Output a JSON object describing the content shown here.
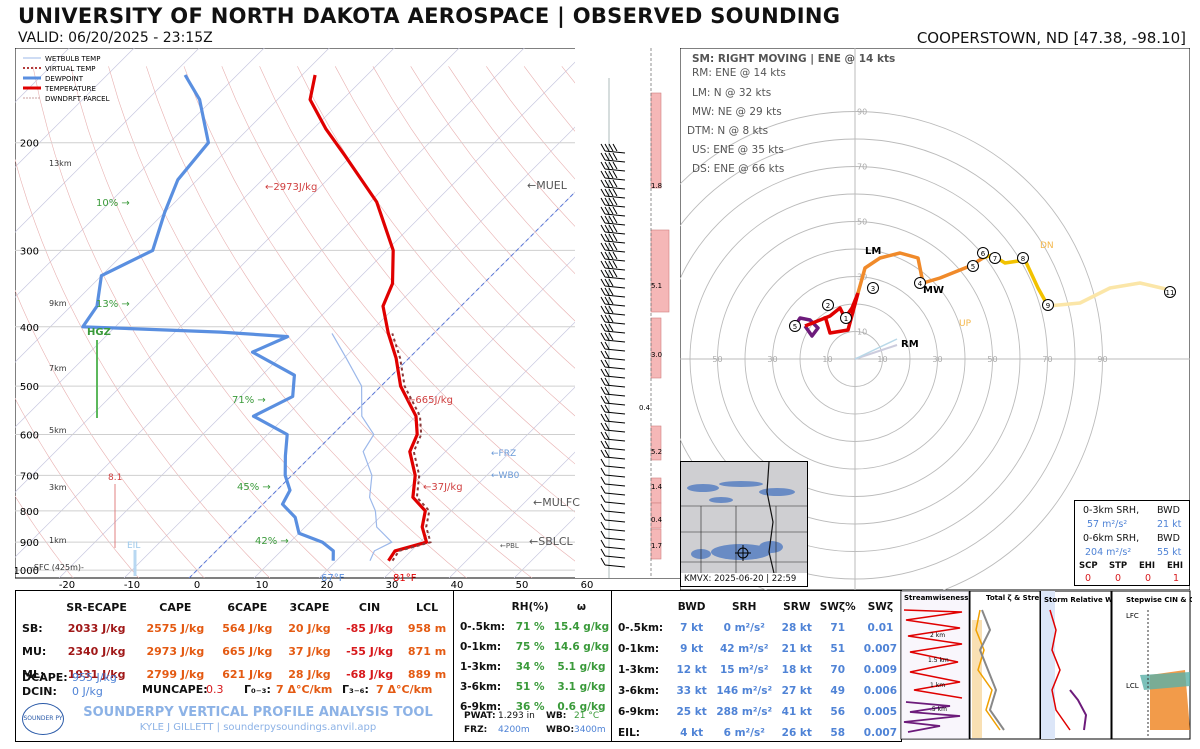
{
  "header": {
    "title": "UNIVERSITY OF NORTH DAKOTA AEROSPACE | OBSERVED SOUNDING",
    "valid": "VALID: 06/20/2025 - 23:15Z",
    "station": "COOPERSTOWN, ND [47.38, -98.10]"
  },
  "legend": [
    "WETBULB TEMP",
    "VIRTUAL TEMP",
    "DEWPOINT",
    "TEMPERATURE",
    "DWNDRFT PARCEL"
  ],
  "skewt": {
    "pressure_labels": [
      "200",
      "300",
      "400",
      "500",
      "600",
      "700",
      "800",
      "900",
      "1000"
    ],
    "pressure_values": [
      200,
      300,
      400,
      500,
      600,
      700,
      800,
      900,
      1000
    ],
    "height_labels": [
      "13km",
      "9km",
      "7km",
      "5km",
      "3km",
      "1km",
      "-SFC (425m)-"
    ],
    "temp_labels": [
      "-20",
      "-10",
      "0",
      "10",
      "20",
      "30",
      "40",
      "50",
      "60"
    ],
    "temp_values": [
      -20,
      -10,
      0,
      10,
      20,
      30,
      40,
      50,
      60
    ],
    "sfc_dewpoint": "67°F",
    "sfc_temp": "81°F",
    "annotations": {
      "cape1": "←2973J/kg",
      "cape2": "←665J/kg",
      "cape3": "←37J/kg",
      "muel": "←MUEL",
      "mulfc": "←MULFC",
      "sblcl": "←SBLCL",
      "pbl": "←PBL",
      "frz": "←FRZ",
      "wb0": "←WB0",
      "rh10": "10% →",
      "rh13": "13% →",
      "rh71": "71% →",
      "rh45": "45% →",
      "rh42": "42% →",
      "hgz": "HGZ",
      "dcape_val": "8.1",
      "eil": "EIL"
    },
    "bar_labels": [
      "1.8",
      "5.1",
      "3.0",
      "0.4",
      "5.2",
      "1.4",
      "0.4",
      "1.7"
    ]
  },
  "chart_data": {
    "type": "line",
    "title": "",
    "xlabel": "",
    "ylabel": "",
    "xlim": [
      -25,
      62
    ],
    "ylim": [
      1000,
      100
    ],
    "series": [
      {
        "name": "TEMPERATURE",
        "points": [
          [
            28,
            965
          ],
          [
            27.5,
            930
          ],
          [
            31,
            900
          ],
          [
            28,
            850
          ],
          [
            26,
            800
          ],
          [
            22,
            760
          ],
          [
            19,
            700
          ],
          [
            14.5,
            640
          ],
          [
            13,
            600
          ],
          [
            10,
            560
          ],
          [
            3,
            500
          ],
          [
            -2,
            450
          ],
          [
            -7,
            410
          ],
          [
            -12,
            370
          ],
          [
            -14,
            340
          ],
          [
            -19,
            300
          ],
          [
            -29,
            250
          ],
          [
            -41,
            210
          ],
          [
            -48,
            190
          ],
          [
            -55,
            170
          ],
          [
            -58,
            155
          ]
        ]
      },
      {
        "name": "DEWPOINT",
        "points": [
          [
            19.5,
            965
          ],
          [
            18,
            930
          ],
          [
            15,
            900
          ],
          [
            10,
            870
          ],
          [
            7,
            820
          ],
          [
            3,
            780
          ],
          [
            2,
            740
          ],
          [
            -1,
            700
          ],
          [
            -4,
            650
          ],
          [
            -7,
            600
          ],
          [
            -15,
            560
          ],
          [
            -12,
            520
          ],
          [
            -15,
            480
          ],
          [
            -25,
            440
          ],
          [
            -22,
            415
          ],
          [
            -33,
            408
          ],
          [
            -55,
            400
          ],
          [
            -56,
            370
          ],
          [
            -60,
            330
          ],
          [
            -56,
            300
          ],
          [
            -60,
            260
          ],
          [
            -63,
            230
          ],
          [
            -64,
            200
          ],
          [
            -72,
            170
          ],
          [
            -78,
            155
          ]
        ]
      }
    ]
  },
  "hodograph": {
    "storm_motion": "SM: RIGHT MOVING | ENE @ 14 kts",
    "vectors": [
      "RM: ENE @ 14 kts",
      "LM: N @ 32 kts",
      "MW: NE @ 29 kts",
      "DTM: N @ 8 kts",
      "US: ENE @ 35 kts",
      "DS: ENE @ 66 kts"
    ],
    "ring_labels": [
      "10",
      "30",
      "50",
      "70",
      "90"
    ],
    "labels": {
      "lm": "LM",
      "mw": "MW",
      "rm": "RM",
      "dn": "DN",
      "up": "UP"
    },
    "height_markers": [
      "1",
      "2",
      "3",
      "4",
      "5",
      "6",
      "7",
      "8",
      "9",
      "11"
    ]
  },
  "srh_box": {
    "l1": "0-3km SRH,",
    "l1b": "BWD",
    "v1": "57 m²/s²",
    "v1b": "21 kt",
    "l2": "0-6km SRH,",
    "l2b": "BWD",
    "v2": "204 m²/s²",
    "v2b": "55 kt",
    "heads": [
      "SCP",
      "STP",
      "EHI",
      "EHI"
    ],
    "vals": [
      "0",
      "0",
      "0",
      "1"
    ]
  },
  "radar": {
    "caption": "KMVX: 2025-06-20 | 22:59"
  },
  "params": {
    "headers": [
      "SR-ECAPE",
      "CAPE",
      "6CAPE",
      "3CAPE",
      "CIN",
      "LCL"
    ],
    "rows": [
      {
        "label": "SB:",
        "vals": [
          "2033 J/kg",
          "2575 J/kg",
          "564 J/kg",
          "20 J/kg",
          "-85 J/kg",
          "958 m"
        ]
      },
      {
        "label": "MU:",
        "vals": [
          "2340 J/kg",
          "2973 J/kg",
          "665 J/kg",
          "37 J/kg",
          "-55 J/kg",
          "871 m"
        ]
      },
      {
        "label": "ML:",
        "vals": [
          "1931 J/kg",
          "2799 J/kg",
          "621 J/kg",
          "28 J/kg",
          "-68 J/kg",
          "889 m"
        ]
      }
    ],
    "dcape_label": "DCAPE:",
    "dcape": "955 J/kg",
    "dcin_label": "DCIN:",
    "dcin": "0 J/kg",
    "mucape_label": "MUNCAPE:",
    "mucape": "0.3",
    "lr03_label": "Γ₀₋₃:",
    "lr03": "7 Δ°C/km",
    "lr36_label": "Γ₃₋₆:",
    "lr36": "7 Δ°C/km"
  },
  "moisture": {
    "headers": [
      "RH(%)",
      "ω"
    ],
    "rows": [
      {
        "label": "0-.5km:",
        "rh": "71 %",
        "w": "15.4 g/kg"
      },
      {
        "label": "0-1km:",
        "rh": "75 %",
        "w": "14.6 g/kg"
      },
      {
        "label": "1-3km:",
        "rh": "34 %",
        "w": "5.1 g/kg"
      },
      {
        "label": "3-6km:",
        "rh": "51 %",
        "w": "3.1 g/kg"
      },
      {
        "label": "6-9km:",
        "rh": "36 %",
        "w": "0.6 g/kg"
      }
    ],
    "pwat_label": "PWAT:",
    "pwat": "1.293 in",
    "wb_label": "WB:",
    "wb": "21 °C",
    "frz_label": "FRZ:",
    "frz": "4200m",
    "wbo_label": "WBO:",
    "wbo": "3400m"
  },
  "kinematics": {
    "headers": [
      "BWD",
      "SRH",
      "SRW",
      "SWζ%",
      "SWζ"
    ],
    "rows": [
      {
        "label": "0-.5km:",
        "vals": [
          "7 kt",
          "0 m²/s²",
          "28 kt",
          "71",
          "0.01"
        ]
      },
      {
        "label": "0-1km:",
        "vals": [
          "9 kt",
          "42 m²/s²",
          "21 kt",
          "51",
          "0.007"
        ]
      },
      {
        "label": "1-3km:",
        "vals": [
          "12 kt",
          "15 m²/s²",
          "18 kt",
          "70",
          "0.009"
        ]
      },
      {
        "label": "3-6km:",
        "vals": [
          "33 kt",
          "146 m²/s²",
          "27 kt",
          "49",
          "0.006"
        ]
      },
      {
        "label": "6-9km:",
        "vals": [
          "25 kt",
          "288 m²/s²",
          "41 kt",
          "56",
          "0.005"
        ]
      },
      {
        "label": "EIL:",
        "vals": [
          "4 kt",
          "6 m²/s²",
          "26 kt",
          "58",
          "0.007"
        ]
      }
    ]
  },
  "mini_panels": {
    "p1": "Streamwiseness of ζ (%)",
    "p2": "Total ζ & Streamwise ζ (/sec)",
    "p3": "Storm Relative Wind (kts)",
    "p4": "Stepwise CIN & CAPE (J/kg)",
    "p1_heights": [
      "2 km",
      "1.5 km",
      "1 km",
      ".5 km"
    ],
    "p4_labels": [
      "LFC",
      "LCL"
    ]
  },
  "footer": {
    "tool": "SOUNDERPY VERTICAL PROFILE ANALYSIS TOOL",
    "author": "KYLE J GILLETT | sounderpysoundings.anvil.app",
    "logo": "SOUNDER PY"
  }
}
